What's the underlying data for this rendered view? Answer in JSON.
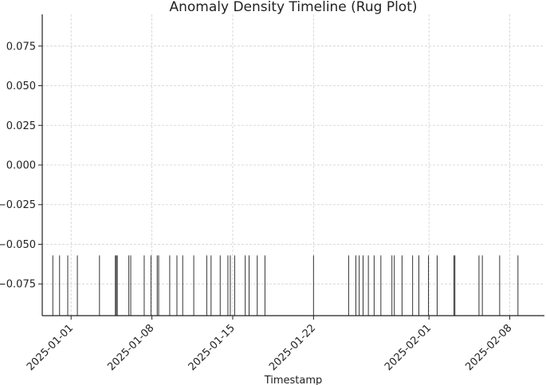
{
  "chart_data": {
    "type": "rug",
    "title": "Anomaly Density Timeline (Rug Plot)",
    "xlabel": "Timestamp",
    "ylabel": "",
    "x_ticks": [
      "2025-01-01",
      "2025-01-08",
      "2025-01-15",
      "2025-01-22",
      "2025-02-01",
      "2025-02-08"
    ],
    "x_range": [
      "2024-12-29T12:00",
      "2025-02-11T00:00"
    ],
    "y_ticks": [
      0.075,
      0.05,
      0.025,
      0.0,
      -0.025,
      -0.05,
      -0.075
    ],
    "y_tick_labels": [
      "0.075",
      "0.050",
      "0.025",
      "0.000",
      "−0.025",
      "−0.050",
      "−0.075"
    ],
    "ylim": [
      -0.095,
      0.095
    ],
    "rug_top": -0.057,
    "grid": true,
    "events": [
      "2024-12-30T10:00",
      "2024-12-31T00:00",
      "2024-12-31T17:00",
      "2025-01-01T13:00",
      "2025-01-03T11:00",
      "2025-01-04T20:00",
      "2025-01-04T22:00",
      "2025-01-05T00:00",
      "2025-01-06T00:00",
      "2025-01-06T04:00",
      "2025-01-07T08:00",
      "2025-01-07T22:00",
      "2025-01-08T11:00",
      "2025-01-08T14:00",
      "2025-01-09T13:00",
      "2025-01-10T04:00",
      "2025-01-10T16:00",
      "2025-01-11T15:00",
      "2025-01-12T18:00",
      "2025-01-13T03:00",
      "2025-01-13T22:00",
      "2025-01-14T14:00",
      "2025-01-14T19:00",
      "2025-01-15T04:00",
      "2025-01-16T02:00",
      "2025-01-16T10:00",
      "2025-01-17T03:00",
      "2025-01-17T19:00",
      "2025-01-22T00:00",
      "2025-01-25T01:00",
      "2025-01-25T16:00",
      "2025-01-25T23:00",
      "2025-01-26T07:00",
      "2025-01-26T18:00",
      "2025-01-27T06:00",
      "2025-01-27T20:00",
      "2025-01-28T19:00",
      "2025-01-29T00:00",
      "2025-01-29T16:00",
      "2025-01-30T14:00",
      "2025-01-31T03:00",
      "2025-01-31T23:00",
      "2025-02-01T17:00",
      "2025-02-03T04:00",
      "2025-02-03T06:00",
      "2025-02-05T08:00",
      "2025-02-05T15:00",
      "2025-02-07T03:00",
      "2025-02-08T17:00"
    ]
  }
}
